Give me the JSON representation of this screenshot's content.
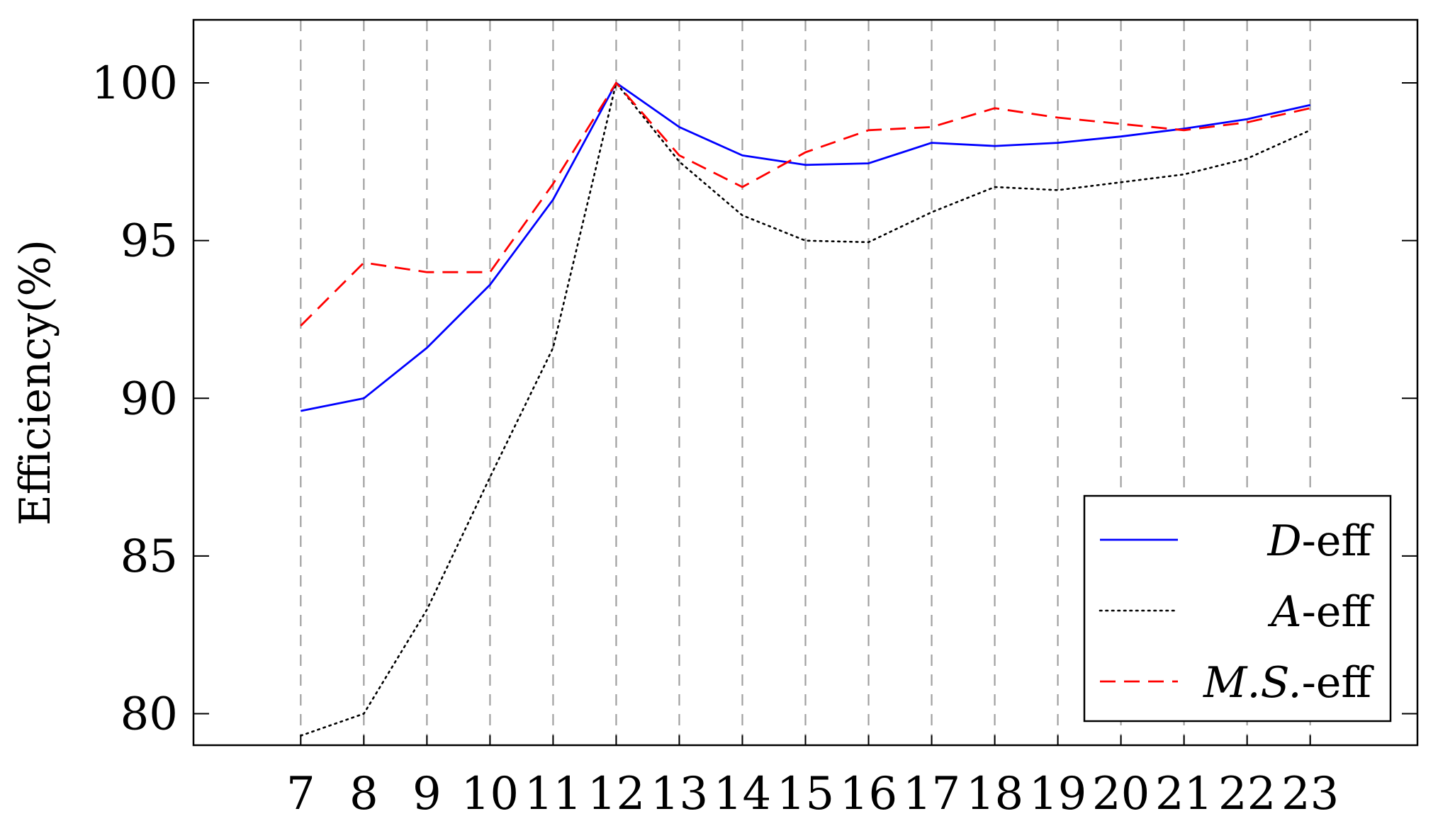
{
  "chart_data": {
    "type": "line",
    "title": "",
    "xlabel": "",
    "ylabel": "Efficiency(%)",
    "x": [
      7,
      8,
      9,
      10,
      11,
      12,
      13,
      14,
      15,
      16,
      17,
      18,
      19,
      20,
      21,
      22,
      23
    ],
    "xlim": [
      5.3,
      24.7
    ],
    "ylim": [
      79,
      102
    ],
    "yticks": [
      80,
      85,
      90,
      95,
      100
    ],
    "grid": "vertical dashed",
    "legend_position": "bottom-right",
    "series": [
      {
        "name": "D-eff",
        "name_italic": "D",
        "name_rest": "-eff",
        "color": "#0000ff",
        "style": "solid",
        "values": [
          89.6,
          90.0,
          91.6,
          93.6,
          96.3,
          100.0,
          98.6,
          97.7,
          97.4,
          97.45,
          98.1,
          98.0,
          98.1,
          98.3,
          98.55,
          98.85,
          99.3
        ]
      },
      {
        "name": "A-eff",
        "name_italic": "A",
        "name_rest": "-eff",
        "color": "#000000",
        "style": "dotted",
        "values": [
          79.3,
          80.0,
          83.3,
          87.5,
          91.6,
          100.0,
          97.5,
          95.8,
          95.0,
          94.95,
          95.9,
          96.7,
          96.6,
          96.85,
          97.1,
          97.6,
          98.5
        ]
      },
      {
        "name": "M.S.-eff",
        "name_italic": "M.S.",
        "name_rest": "-eff",
        "color": "#ff0000",
        "style": "dashed",
        "values": [
          92.3,
          94.3,
          94.0,
          94.0,
          96.8,
          100.0,
          97.7,
          96.7,
          97.8,
          98.5,
          98.6,
          99.2,
          98.9,
          98.7,
          98.5,
          98.75,
          99.2
        ]
      }
    ]
  }
}
